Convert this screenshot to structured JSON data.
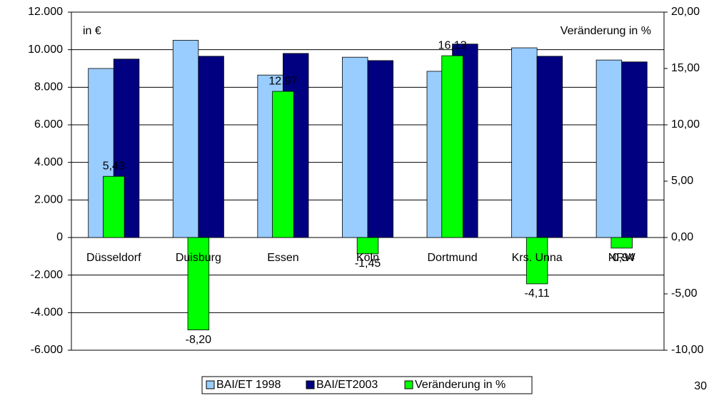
{
  "chart_data": {
    "type": "bar",
    "annotations": [
      "in €",
      "Veränderung in %"
    ],
    "page_number": "30",
    "categories": [
      "Düsseldorf",
      "Duisburg",
      "Essen",
      "Köln",
      "Dortmund",
      "Krs. Unna",
      "NRW"
    ],
    "series": [
      {
        "name": "BAI/ET 1998",
        "color": "#99ccff",
        "values": [
          9000,
          10500,
          8650,
          9600,
          8850,
          10100,
          9450
        ]
      },
      {
        "name": "BAI/ET2003",
        "color": "#000080",
        "values": [
          9500,
          9650,
          9800,
          9420,
          10300,
          9650,
          9350
        ]
      },
      {
        "name": "Veränderung in %",
        "color": "#00ff00",
        "axis": "y2",
        "values": [
          5.43,
          -8.2,
          12.97,
          -1.45,
          16.13,
          -4.11,
          -0.94
        ],
        "value_labels": [
          "5,43",
          "-8,20",
          "12,97",
          "-1,45",
          "16,13",
          "-4,11",
          "-0,94"
        ]
      }
    ],
    "ylim": [
      -6000,
      12000
    ],
    "yticks": [
      {
        "value": 12000,
        "label": "12.000"
      },
      {
        "value": 10000,
        "label": "10.000"
      },
      {
        "value": 8000,
        "label": "8.000"
      },
      {
        "value": 6000,
        "label": "6.000"
      },
      {
        "value": 4000,
        "label": "4.000"
      },
      {
        "value": 2000,
        "label": "2.000"
      },
      0,
      {
        "value": -2000,
        "label": "-2.000"
      },
      {
        "value": -4000,
        "label": "-4.000"
      },
      {
        "value": -6000,
        "label": "-6.000"
      }
    ],
    "y2lim": [
      -10,
      20
    ],
    "y2ticks": [
      {
        "value": 20,
        "label": "20,00"
      },
      {
        "value": 15,
        "label": "15,00"
      },
      {
        "value": 10,
        "label": "10,00"
      },
      {
        "value": 5,
        "label": "5,00"
      },
      {
        "value": 0,
        "label": "0,00"
      },
      {
        "value": -5,
        "label": "-5,00"
      },
      {
        "value": -10,
        "label": "-10,00"
      }
    ],
    "grid": true,
    "legend": "bottom"
  }
}
